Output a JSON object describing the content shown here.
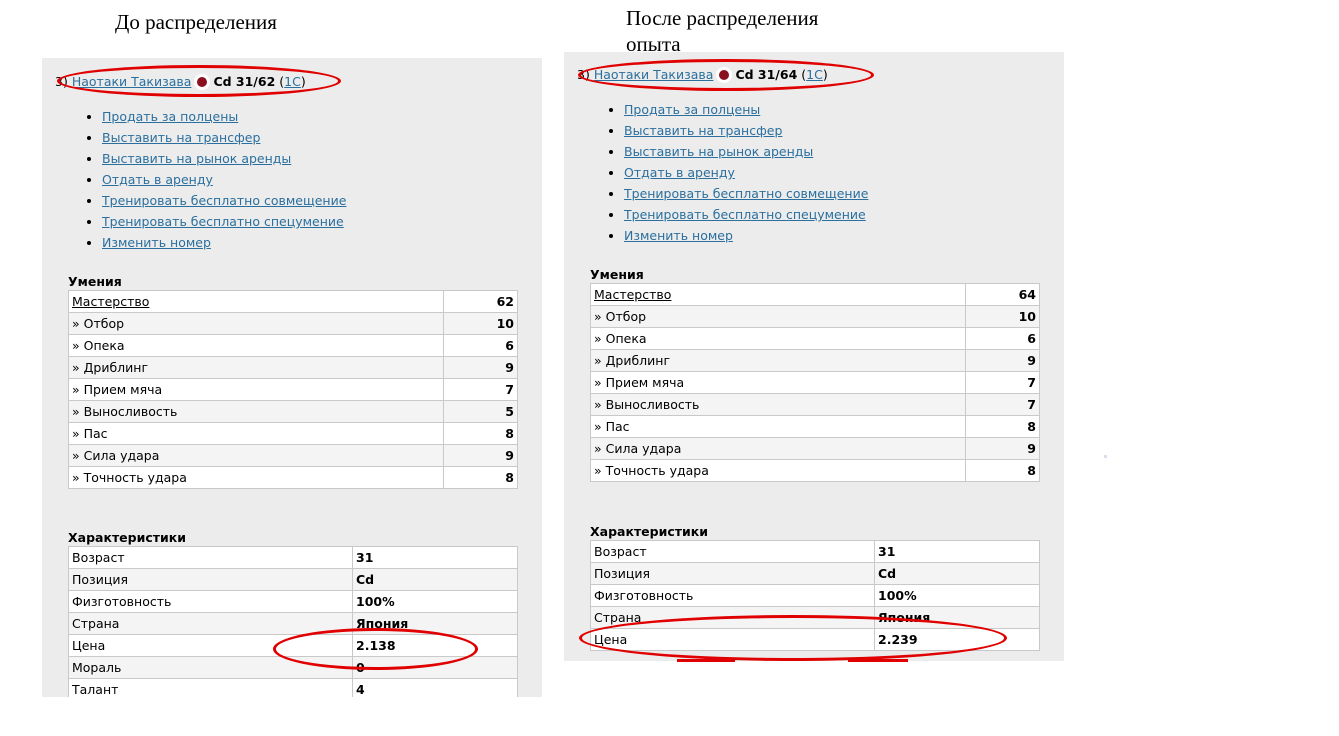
{
  "captions": {
    "left": "До распределения",
    "right_line1": "После распределения",
    "right_line2": "опыта"
  },
  "left": {
    "player": {
      "num": "3)",
      "name": "Наотаки Такизава",
      "pos_level": "Cd 31/62",
      "link_open": "(",
      "link": "1С",
      "link_close": ")"
    },
    "actions": [
      "Продать за полцены",
      "Выставить на трансфер",
      "Выставить на рынок аренды",
      "Отдать в аренду",
      "Тренировать бесплатно совмещение",
      "Тренировать бесплатно спецумение",
      "Изменить номер"
    ],
    "skills_title": "Умения",
    "skills": [
      {
        "name": "Мастерство",
        "value": "62"
      },
      {
        "name": "» Отбор",
        "value": "10"
      },
      {
        "name": "» Опека",
        "value": "6"
      },
      {
        "name": "» Дриблинг",
        "value": "9"
      },
      {
        "name": "» Прием мяча",
        "value": "7"
      },
      {
        "name": "» Выносливость",
        "value": "5"
      },
      {
        "name": "» Пас",
        "value": "8"
      },
      {
        "name": "» Сила удара",
        "value": "9"
      },
      {
        "name": "» Точность удара",
        "value": "8"
      }
    ],
    "chars_title": "Характеристики",
    "chars": [
      {
        "name": "Возраст",
        "value": "31"
      },
      {
        "name": "Позиция",
        "value": "Cd"
      },
      {
        "name": "Физготовность",
        "value": "100%"
      },
      {
        "name": "Страна",
        "value": "Япония"
      },
      {
        "name": "Цена",
        "value": "2.138"
      },
      {
        "name": "Мораль",
        "value": "0"
      },
      {
        "name": "Талант",
        "value": "4"
      }
    ]
  },
  "right": {
    "player": {
      "num": "3)",
      "name": "Наотаки Такизава",
      "pos_level": "Cd 31/64",
      "link_open": "(",
      "link": "1С",
      "link_close": ")"
    },
    "actions": [
      "Продать за полцены",
      "Выставить на трансфер",
      "Выставить на рынок аренды",
      "Отдать в аренду",
      "Тренировать бесплатно совмещение",
      "Тренировать бесплатно спецумение",
      "Изменить номер"
    ],
    "skills_title": "Умения",
    "skills": [
      {
        "name": "Мастерство",
        "value": "64"
      },
      {
        "name": "» Отбор",
        "value": "10"
      },
      {
        "name": "» Опека",
        "value": "6"
      },
      {
        "name": "» Дриблинг",
        "value": "9"
      },
      {
        "name": "» Прием мяча",
        "value": "7"
      },
      {
        "name": "» Выносливость",
        "value": "7"
      },
      {
        "name": "» Пас",
        "value": "8"
      },
      {
        "name": "» Сила удара",
        "value": "9"
      },
      {
        "name": "» Точность удара",
        "value": "8"
      }
    ],
    "chars_title": "Характеристики",
    "chars": [
      {
        "name": "Возраст",
        "value": "31"
      },
      {
        "name": "Позиция",
        "value": "Cd"
      },
      {
        "name": "Физготовность",
        "value": "100%"
      },
      {
        "name": "Страна",
        "value": "Япония"
      },
      {
        "name": "Цена",
        "value": "2.239"
      }
    ]
  },
  "colors": {
    "highlight": "#e00000",
    "link": "#2a6f9e",
    "panel_bg": "#ececec"
  }
}
